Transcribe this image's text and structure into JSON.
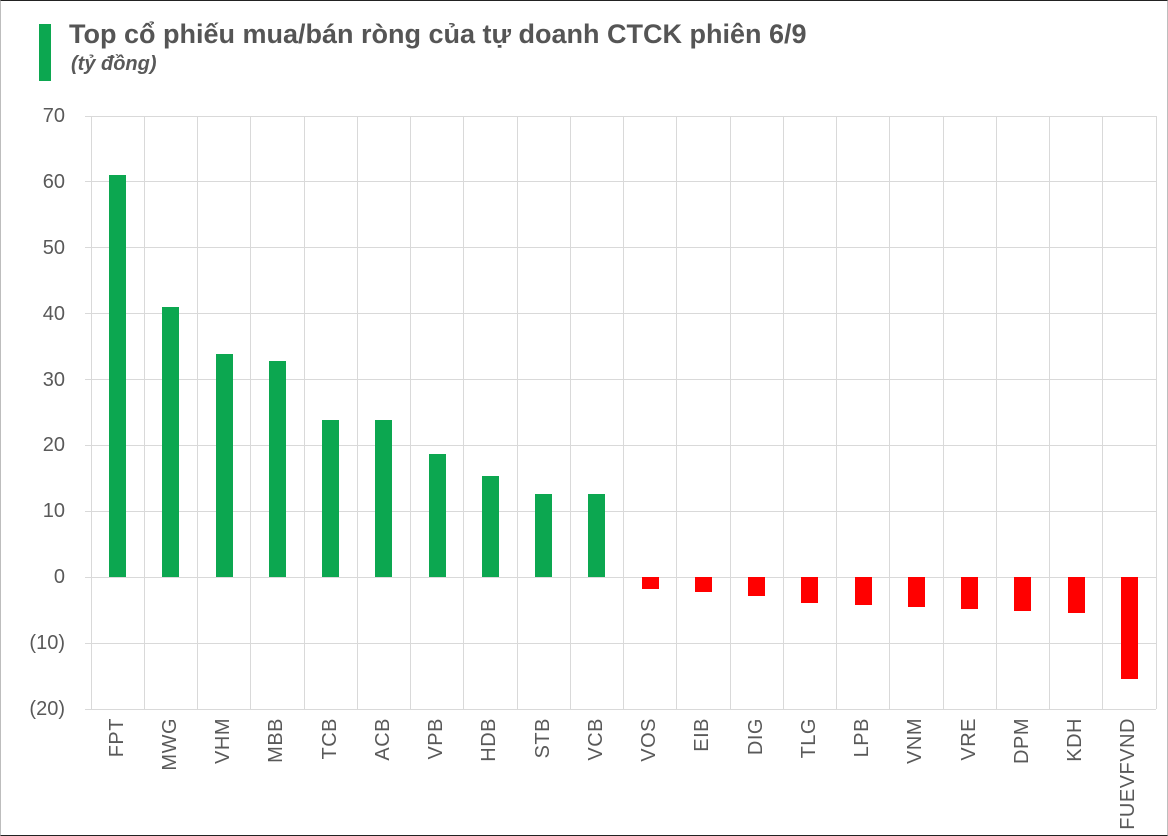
{
  "header": {
    "title": "Top cổ phiếu mua/bán ròng của tự doanh CTCK phiên 6/9",
    "subtitle": "(tỷ đồng)",
    "marker_color": "#0CA750"
  },
  "chart_data": {
    "type": "bar",
    "title": "Top cổ phiếu mua/bán ròng của tự doanh CTCK phiên 6/9",
    "unit_label": "(tỷ đồng)",
    "categories": [
      "FPT",
      "MWG",
      "VHM",
      "MBB",
      "TCB",
      "ACB",
      "VPB",
      "HDB",
      "STB",
      "VCB",
      "VOS",
      "EIB",
      "DIG",
      "TLG",
      "LPB",
      "VNM",
      "VRE",
      "DPM",
      "KDH",
      "FUEVFVND"
    ],
    "values": [
      61.1,
      41.0,
      33.9,
      32.8,
      23.8,
      23.8,
      18.7,
      15.4,
      12.7,
      12.7,
      -1.8,
      -2.2,
      -2.9,
      -3.9,
      -4.2,
      -4.5,
      -4.8,
      -5.2,
      -5.5,
      -15.4
    ],
    "ylim": [
      -20,
      70
    ],
    "ytick_step": 10,
    "ytick_labels": [
      "70",
      "60",
      "50",
      "40",
      "30",
      "20",
      "10",
      "0",
      "(10)",
      "(20)"
    ],
    "grid": true,
    "legend": "none",
    "colors": {
      "positive": "#0CA750",
      "negative": "#FF0000",
      "gridline": "#D9D9D9",
      "axis_text": "#595959",
      "title_text": "#555555"
    }
  }
}
